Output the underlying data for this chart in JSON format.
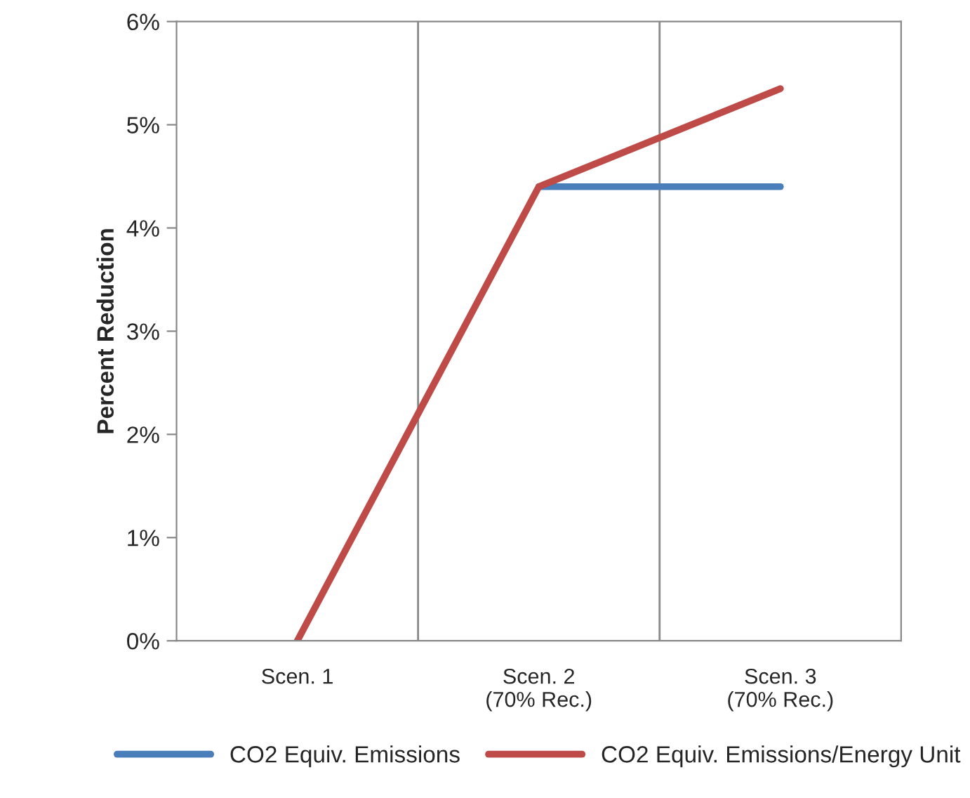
{
  "chart_data": {
    "type": "line",
    "ylabel": "Percent Reduction",
    "categories": [
      "Scen. 1",
      "Scen. 2\n(70% Rec.)",
      "Scen. 3\n(70% Rec.)"
    ],
    "series": [
      {
        "name": "CO2 Equiv. Emissions",
        "color": "#4a7ebb",
        "values": [
          null,
          4.4,
          4.4
        ]
      },
      {
        "name": "CO2 Equiv. Emissions/Energy Unit",
        "color": "#be4b48",
        "values": [
          0,
          4.4,
          5.35
        ]
      }
    ],
    "ylim": [
      0,
      6
    ],
    "yticks": [
      {
        "value": 0,
        "label": "0%"
      },
      {
        "value": 1,
        "label": "1%"
      },
      {
        "value": 2,
        "label": "2%"
      },
      {
        "value": 3,
        "label": "3%"
      },
      {
        "value": 4,
        "label": "4%"
      },
      {
        "value": 5,
        "label": "5%"
      },
      {
        "value": 6,
        "label": "6%"
      }
    ],
    "grid": "x",
    "legend": "bottom",
    "marker": "none",
    "line_style": "solid"
  }
}
